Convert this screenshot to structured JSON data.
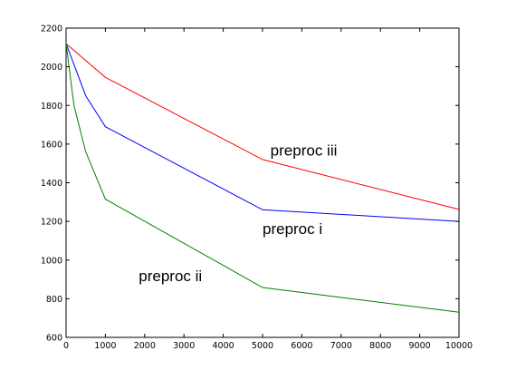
{
  "chart_data": {
    "type": "line",
    "title": "",
    "xlabel": "",
    "ylabel": "",
    "xlim": [
      0,
      10000
    ],
    "ylim": [
      600,
      2200
    ],
    "xticks": [
      "0",
      "1000",
      "2000",
      "3000",
      "4000",
      "5000",
      "6000",
      "7000",
      "8000",
      "9000",
      "10000"
    ],
    "yticks": [
      "600",
      "800",
      "1000",
      "1200",
      "1400",
      "1600",
      "1800",
      "2000",
      "2200"
    ],
    "grid": false,
    "legend": "none",
    "series": [
      {
        "color": "#ff0000",
        "x": [
          0,
          1000,
          5000,
          10000
        ],
        "y": [
          2120,
          1945,
          1520,
          1262
        ]
      },
      {
        "color": "#0000ff",
        "x": [
          0,
          500,
          1000,
          5000,
          10000
        ],
        "y": [
          2120,
          1850,
          1690,
          1260,
          1200
        ]
      },
      {
        "color": "#008000",
        "x": [
          0,
          200,
          500,
          1000,
          5000,
          10000
        ],
        "y": [
          2120,
          1800,
          1560,
          1315,
          858,
          730
        ]
      }
    ],
    "annotations": [
      {
        "text": "preproc iii",
        "x": 5200,
        "y": 1540
      },
      {
        "text": "preproc i",
        "x": 5000,
        "y": 1135
      },
      {
        "text": "preproc ii",
        "x": 1850,
        "y": 890
      }
    ]
  }
}
